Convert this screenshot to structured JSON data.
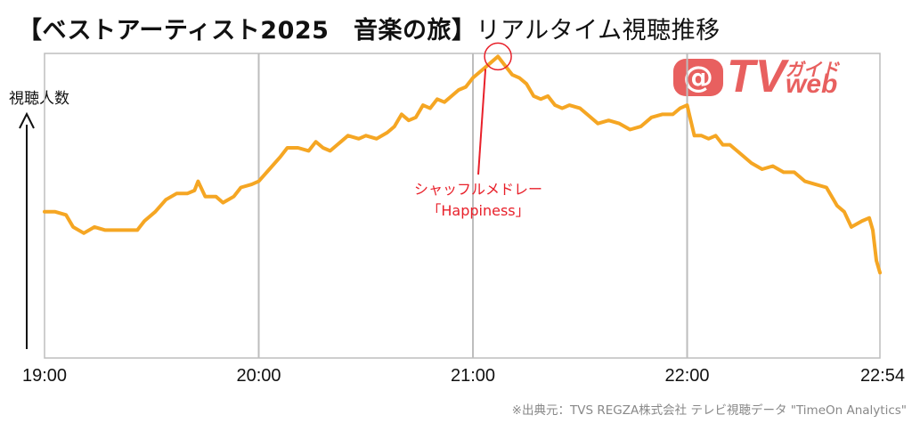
{
  "header": {
    "title_main": "【ベストアーティスト2025　音楽の旅】",
    "title_sub": "リアルタイム視聴推移"
  },
  "logo": {
    "at": "@",
    "tv": "TV",
    "kana": "ガイド",
    "web": "web"
  },
  "source_note": "※出典元：TVS REGZA株式会社 テレビ視聴データ \"TimeOn Analytics\"",
  "colors": {
    "line": "#f5a623",
    "accent": "#e8202a",
    "grid": "#bdbdbd",
    "logo": "#e8605f"
  },
  "chart_data": {
    "type": "line",
    "ylabel": "視聴人数",
    "xlabel": "",
    "x_ticks": [
      "19:00",
      "20:00",
      "21:00",
      "22:00",
      "22:54"
    ],
    "x_range": [
      "19:00",
      "22:54"
    ],
    "y_axis_numbered": false,
    "y_range": [
      0,
      100
    ],
    "grid": "vertical lines at each hour",
    "series": [
      {
        "points": [
          [
            "19:00",
            48
          ],
          [
            "19:03",
            48
          ],
          [
            "19:06",
            47
          ],
          [
            "19:08",
            43
          ],
          [
            "19:11",
            41
          ],
          [
            "19:14",
            43
          ],
          [
            "19:17",
            42
          ],
          [
            "19:20",
            42
          ],
          [
            "19:23",
            42
          ],
          [
            "19:26",
            42
          ],
          [
            "19:28",
            45
          ],
          [
            "19:31",
            48
          ],
          [
            "19:34",
            52
          ],
          [
            "19:37",
            54
          ],
          [
            "19:40",
            54
          ],
          [
            "19:42",
            55
          ],
          [
            "19:43",
            58
          ],
          [
            "19:45",
            53
          ],
          [
            "19:48",
            53
          ],
          [
            "19:50",
            51
          ],
          [
            "19:53",
            53
          ],
          [
            "19:55",
            56
          ],
          [
            "19:58",
            57
          ],
          [
            "20:00",
            58
          ],
          [
            "20:03",
            62
          ],
          [
            "20:06",
            66
          ],
          [
            "20:08",
            69
          ],
          [
            "20:11",
            69
          ],
          [
            "20:14",
            68
          ],
          [
            "20:16",
            71
          ],
          [
            "20:18",
            69
          ],
          [
            "20:20",
            68
          ],
          [
            "20:23",
            71
          ],
          [
            "20:25",
            73
          ],
          [
            "20:28",
            72
          ],
          [
            "20:30",
            73
          ],
          [
            "20:33",
            72
          ],
          [
            "20:36",
            74
          ],
          [
            "20:38",
            76
          ],
          [
            "20:40",
            80
          ],
          [
            "20:42",
            78
          ],
          [
            "20:44",
            79
          ],
          [
            "20:46",
            83
          ],
          [
            "20:48",
            82
          ],
          [
            "20:50",
            85
          ],
          [
            "20:52",
            84
          ],
          [
            "20:54",
            86
          ],
          [
            "20:56",
            88
          ],
          [
            "20:58",
            89
          ],
          [
            "21:00",
            92
          ],
          [
            "21:03",
            95
          ],
          [
            "21:05",
            97
          ],
          [
            "21:07",
            99
          ],
          [
            "21:09",
            96
          ],
          [
            "21:11",
            93
          ],
          [
            "21:13",
            92
          ],
          [
            "21:15",
            90
          ],
          [
            "21:17",
            86
          ],
          [
            "21:19",
            85
          ],
          [
            "21:21",
            86
          ],
          [
            "21:23",
            83
          ],
          [
            "21:25",
            82
          ],
          [
            "21:27",
            83
          ],
          [
            "21:30",
            82
          ],
          [
            "21:32",
            80
          ],
          [
            "21:35",
            77
          ],
          [
            "21:38",
            78
          ],
          [
            "21:41",
            77
          ],
          [
            "21:44",
            75
          ],
          [
            "21:47",
            76
          ],
          [
            "21:50",
            79
          ],
          [
            "21:53",
            80
          ],
          [
            "21:56",
            80
          ],
          [
            "21:58",
            82
          ],
          [
            "22:00",
            83
          ],
          [
            "22:02",
            73
          ],
          [
            "22:04",
            73
          ],
          [
            "22:06",
            72
          ],
          [
            "22:08",
            73
          ],
          [
            "22:10",
            70
          ],
          [
            "22:12",
            70
          ],
          [
            "22:15",
            67
          ],
          [
            "22:18",
            64
          ],
          [
            "22:21",
            62
          ],
          [
            "22:24",
            63
          ],
          [
            "22:27",
            61
          ],
          [
            "22:30",
            61
          ],
          [
            "22:33",
            58
          ],
          [
            "22:36",
            57
          ],
          [
            "22:39",
            56
          ],
          [
            "22:42",
            50
          ],
          [
            "22:44",
            48
          ],
          [
            "22:46",
            43
          ],
          [
            "22:49",
            45
          ],
          [
            "22:51",
            46
          ],
          [
            "22:52",
            42
          ],
          [
            "22:53",
            32
          ],
          [
            "22:54",
            28
          ]
        ]
      }
    ],
    "annotations": [
      {
        "label": "シャッフルメドレー\n「Happiness」",
        "time": "21:07",
        "value": 99,
        "marker": "circle"
      }
    ]
  }
}
